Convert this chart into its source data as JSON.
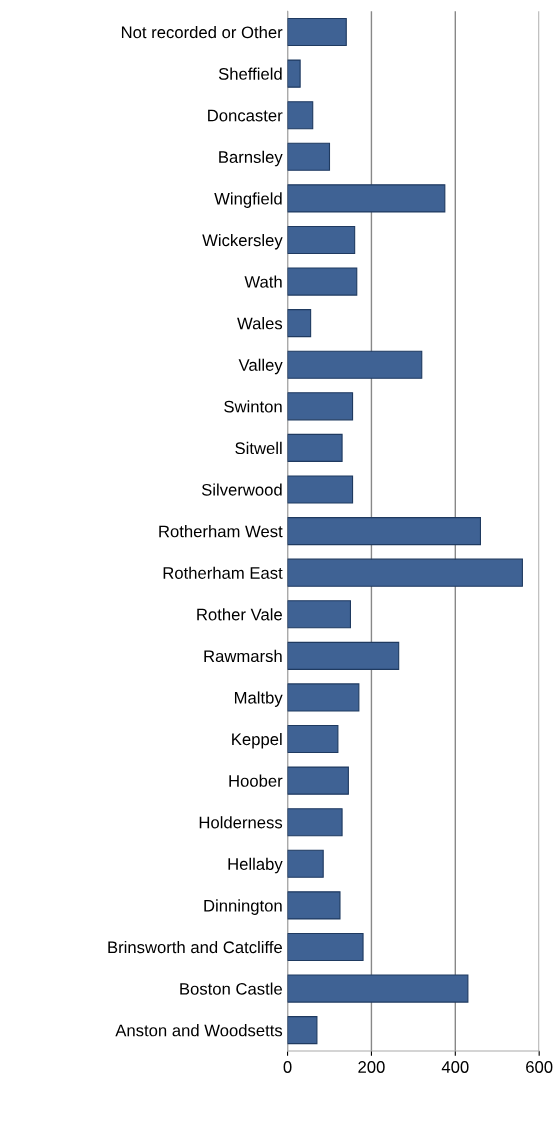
{
  "chart_data": {
    "type": "bar",
    "orientation": "horizontal",
    "categories": [
      "Not recorded or Other",
      "Sheffield",
      "Doncaster",
      "Barnsley",
      "Wingfield",
      "Wickersley",
      "Wath",
      "Wales",
      "Valley",
      "Swinton",
      "Sitwell",
      "Silverwood",
      "Rotherham West",
      "Rotherham East",
      "Rother Vale",
      "Rawmarsh",
      "Maltby",
      "Keppel",
      "Hoober",
      "Holderness",
      "Hellaby",
      "Dinnington",
      "Brinsworth and Catcliffe",
      "Boston Castle",
      "Anston and Woodsetts"
    ],
    "values": [
      140,
      30,
      60,
      100,
      375,
      160,
      165,
      55,
      320,
      155,
      130,
      155,
      460,
      560,
      150,
      265,
      170,
      120,
      145,
      130,
      85,
      125,
      180,
      430,
      70
    ],
    "color": "#3f6294",
    "xlim": [
      0,
      600
    ],
    "xticks": [
      0,
      200,
      400,
      600
    ],
    "grid": "x"
  }
}
